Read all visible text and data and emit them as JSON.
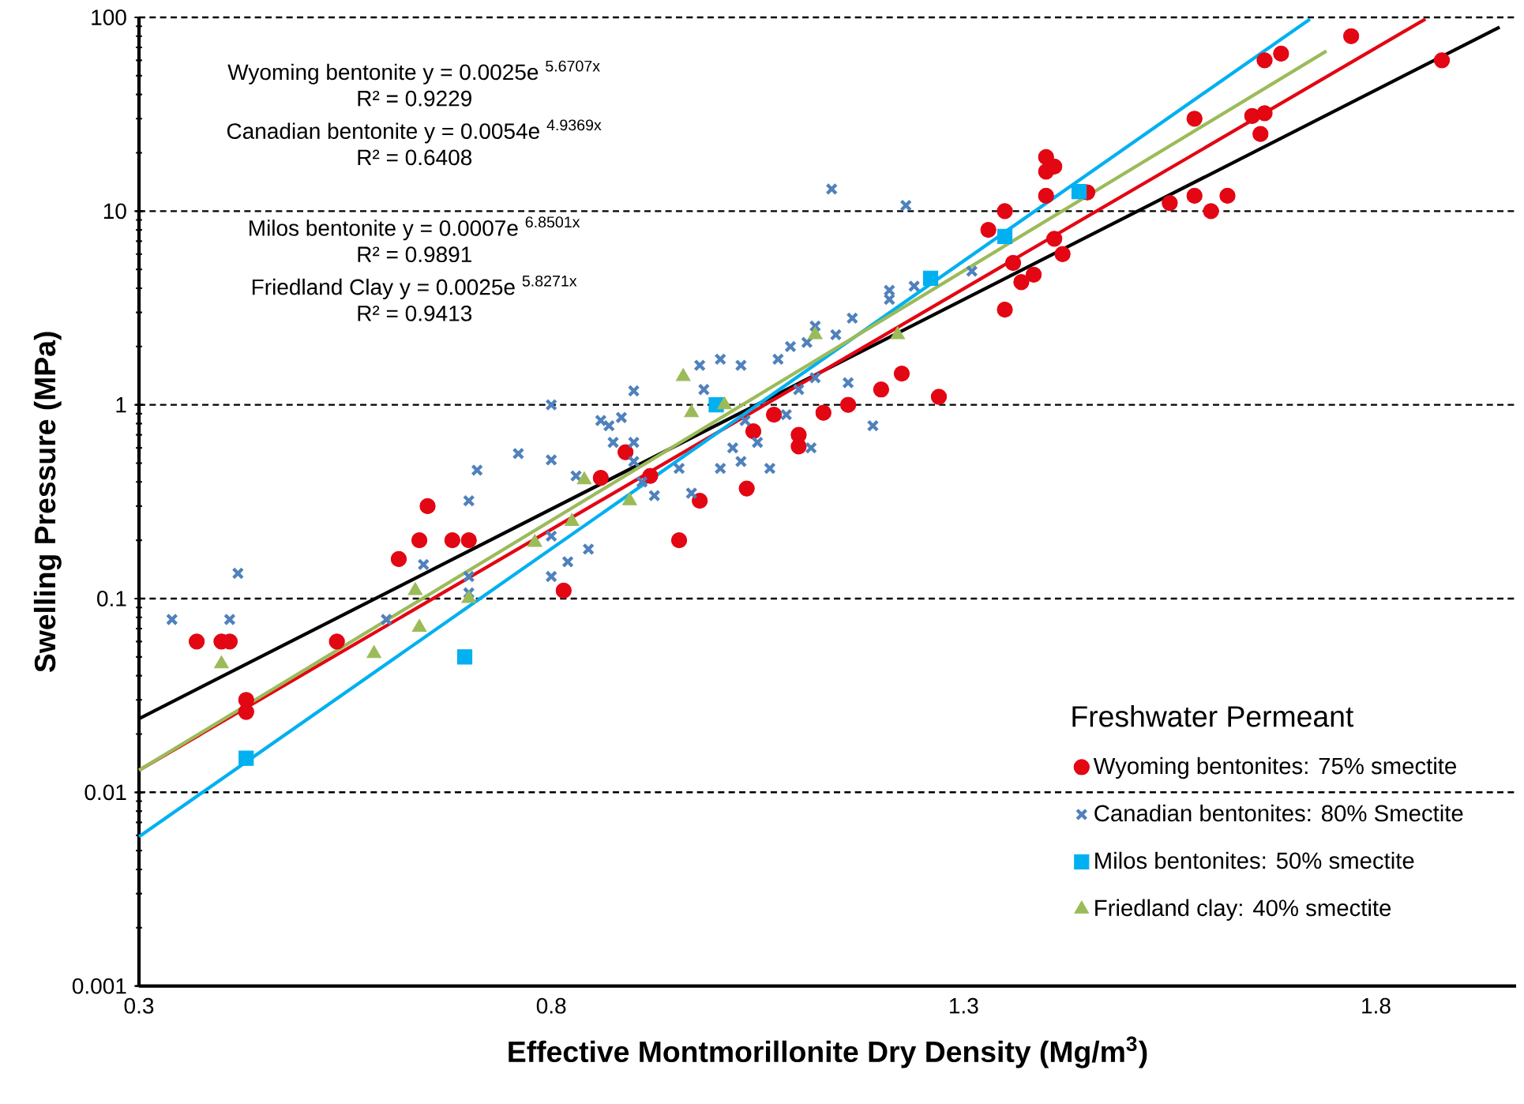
{
  "chart_data": {
    "type": "scatter",
    "xlabel": "Effective Montmorillonite Dry Density (Mg/m$^{3}$)",
    "ylabel": "Swelling Pressure (MPa)",
    "legend_title": "Freshwater Permeant",
    "legend": "bottom right",
    "grid": "y",
    "log": "y",
    "xlim": [
      0.3,
      1.97
    ],
    "xticks": [
      0.3,
      0.8,
      1.3,
      1.8
    ],
    "ylim": [
      0.001,
      100
    ],
    "yticks": [
      0.001,
      0.01,
      0.1,
      1,
      10,
      100
    ],
    "annotations": [
      "Wyoming bentonite    y = 0.0025e $^{5.6707x}$",
      "R² = 0.9229",
      "Canadian bentonite  y = 0.0054e $^{4.9369x}$",
      "R² = 0.6408",
      "Milos bentonite  y = 0.0007e $^{6.8501x}$",
      "R² = 0.9891",
      "Friedland Clay  y = 0.0025e $^{5.8271x}$",
      "R² = 0.9413"
    ],
    "series": [
      {
        "name": "Wyoming bentonites: 75% smectite",
        "type": "scatter",
        "marker": "circle",
        "color": "#e30613",
        "x": [
          0.37,
          0.4,
          0.41,
          0.43,
          0.43,
          0.54,
          0.615,
          0.64,
          0.65,
          0.68,
          0.7,
          0.815,
          0.86,
          0.89,
          0.92,
          0.955,
          0.98,
          1.037,
          1.045,
          1.07,
          1.1,
          1.1,
          1.13,
          1.16,
          1.2,
          1.225,
          1.27,
          1.33,
          1.35,
          1.35,
          1.36,
          1.37,
          1.385,
          1.4,
          1.4,
          1.4,
          1.41,
          1.41,
          1.42,
          1.45,
          1.55,
          1.58,
          1.58,
          1.6,
          1.62,
          1.65,
          1.66,
          1.665,
          1.665,
          1.685,
          1.77,
          1.88
        ],
        "values": [
          0.06,
          0.06,
          0.06,
          0.026,
          0.03,
          0.06,
          0.16,
          0.2,
          0.3,
          0.2,
          0.2,
          0.11,
          0.42,
          0.57,
          0.43,
          0.2,
          0.32,
          0.37,
          0.73,
          0.89,
          0.61,
          0.7,
          0.91,
          1.0,
          1.2,
          1.45,
          1.1,
          8,
          3.1,
          10,
          5.4,
          4.3,
          4.7,
          12,
          16,
          19,
          7.2,
          17,
          6,
          12.5,
          11,
          12,
          30,
          10,
          12,
          31,
          25,
          32,
          60,
          65,
          80,
          60
        ]
      },
      {
        "name": "Canadian bentonites: 80% Smectite",
        "type": "scatter",
        "marker": "cross",
        "color": "#4f81bd",
        "x": [
          0.34,
          0.41,
          0.42,
          0.6,
          0.645,
          0.7,
          0.71,
          0.7,
          0.7,
          0.76,
          0.8,
          0.8,
          0.8,
          0.8,
          0.82,
          0.83,
          0.845,
          0.86,
          0.87,
          0.875,
          0.885,
          0.9,
          0.9,
          0.9,
          0.91,
          0.925,
          0.955,
          0.97,
          0.98,
          0.985,
          1.005,
          1.005,
          1.02,
          1.03,
          1.03,
          1.035,
          1.05,
          1.065,
          1.075,
          1.085,
          1.09,
          1.1,
          1.11,
          1.115,
          1.12,
          1.12,
          1.14,
          1.145,
          1.16,
          1.165,
          1.19,
          1.21,
          1.21,
          1.23,
          1.24,
          1.31
        ],
        "values": [
          0.078,
          0.078,
          0.135,
          0.078,
          0.15,
          0.32,
          0.46,
          0.13,
          0.107,
          0.56,
          1.0,
          0.52,
          0.21,
          0.13,
          0.155,
          0.43,
          0.18,
          0.83,
          0.78,
          0.64,
          0.86,
          1.18,
          0.64,
          0.51,
          0.4,
          0.34,
          0.47,
          0.35,
          1.6,
          1.2,
          1.72,
          0.47,
          0.6,
          1.6,
          0.51,
          0.83,
          0.64,
          0.47,
          1.72,
          0.89,
          2.0,
          1.2,
          2.1,
          0.6,
          1.38,
          2.55,
          13,
          2.3,
          1.3,
          2.8,
          0.78,
          3.9,
          3.5,
          10.7,
          4.1,
          4.9
        ]
      },
      {
        "name": "Milos bentonites: 50% smectite",
        "type": "scatter",
        "marker": "square",
        "color": "#00b0f0",
        "x": [
          0.43,
          0.695,
          1.0,
          1.26,
          1.35,
          1.44
        ],
        "values": [
          0.015,
          0.05,
          1.0,
          4.5,
          7.4,
          12.6
        ]
      },
      {
        "name": "Friedland clay: 40% smectite",
        "type": "scatter",
        "marker": "triangle",
        "color": "#9bbb59",
        "x": [
          0.4,
          0.585,
          0.635,
          0.64,
          0.7,
          0.78,
          0.825,
          0.84,
          0.895,
          0.96,
          0.97,
          1.01,
          1.12,
          1.22
        ],
        "values": [
          0.046,
          0.052,
          0.11,
          0.071,
          0.1,
          0.195,
          0.25,
          0.41,
          0.32,
          1.4,
          0.91,
          1.0,
          2.3,
          2.3
        ]
      },
      {
        "type": "line",
        "marker": "none",
        "color": "#000000",
        "x": [
          0.3,
          1.95
        ],
        "values": [
          0.024,
          89
        ]
      },
      {
        "type": "line",
        "marker": "none",
        "color": "#e30613",
        "x": [
          0.3,
          1.86
        ],
        "values": [
          0.013,
          98
        ]
      },
      {
        "type": "line",
        "marker": "none",
        "color": "#00b0f0",
        "x": [
          0.3,
          1.72
        ],
        "values": [
          0.0059,
          98
        ]
      },
      {
        "type": "line",
        "marker": "none",
        "color": "#9bbb59",
        "x": [
          0.3,
          1.74
        ],
        "values": [
          0.013,
          67
        ]
      }
    ]
  }
}
